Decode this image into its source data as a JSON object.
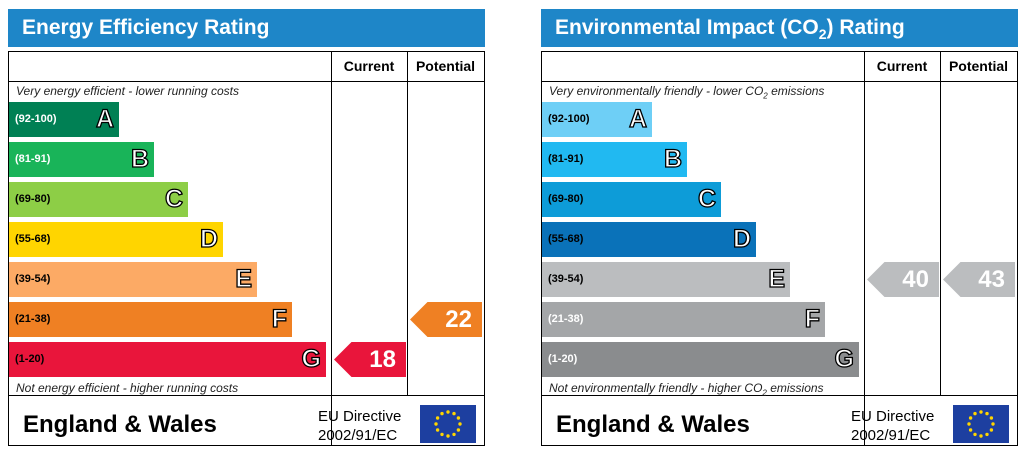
{
  "chart_data": [
    {
      "type": "table",
      "title": "Energy Efficiency Rating",
      "columns": [
        "Current",
        "Potential"
      ],
      "top_note": "Very energy efficient - lower running costs",
      "bottom_note": "Not energy efficient - higher running costs",
      "bands": [
        {
          "letter": "A",
          "range": "(92-100)",
          "color": "#008054",
          "text_color": "#ffffff"
        },
        {
          "letter": "B",
          "range": "(81-91)",
          "color": "#19b459",
          "text_color": "#ffffff"
        },
        {
          "letter": "C",
          "range": "(69-80)",
          "color": "#8dce46",
          "text_color": "#000000"
        },
        {
          "letter": "D",
          "range": "(55-68)",
          "color": "#ffd500",
          "text_color": "#000000"
        },
        {
          "letter": "E",
          "range": "(39-54)",
          "color": "#fcaa65",
          "text_color": "#000000"
        },
        {
          "letter": "F",
          "range": "(21-38)",
          "color": "#ef8023",
          "text_color": "#000000"
        },
        {
          "letter": "G",
          "range": "(1-20)",
          "color": "#e9153b",
          "text_color": "#000000"
        }
      ],
      "current": {
        "value": 18,
        "band": "G",
        "color": "#e9153b"
      },
      "potential": {
        "value": 22,
        "band": "F",
        "color": "#ef8023"
      },
      "footer": {
        "country": "England & Wales",
        "directive_line1": "EU Directive",
        "directive_line2": "2002/91/EC"
      }
    },
    {
      "type": "table",
      "title_pre": "Environmental Impact (CO",
      "title_sub": "2",
      "title_post": ") Rating",
      "columns": [
        "Current",
        "Potential"
      ],
      "top_note_pre": "Very environmentally friendly - lower CO",
      "top_note_sub": "2",
      "top_note_post": " emissions",
      "bottom_note_pre": "Not environmentally friendly - higher CO",
      "bottom_note_sub": "2",
      "bottom_note_post": " emissions",
      "bands": [
        {
          "letter": "A",
          "range": "(92-100)",
          "color": "#6ecff6",
          "text_color": "#000000"
        },
        {
          "letter": "B",
          "range": "(81-91)",
          "color": "#21b9f1",
          "text_color": "#000000"
        },
        {
          "letter": "C",
          "range": "(69-80)",
          "color": "#0d9cd8",
          "text_color": "#000000"
        },
        {
          "letter": "D",
          "range": "(55-68)",
          "color": "#0a72b9",
          "text_color": "#000000"
        },
        {
          "letter": "E",
          "range": "(39-54)",
          "color": "#bbbdbf",
          "text_color": "#000000"
        },
        {
          "letter": "F",
          "range": "(21-38)",
          "color": "#a4a6a8",
          "text_color": "#ffffff"
        },
        {
          "letter": "G",
          "range": "(1-20)",
          "color": "#8a8c8e",
          "text_color": "#ffffff"
        }
      ],
      "current": {
        "value": 40,
        "band": "E",
        "color": "#bbbdbf"
      },
      "potential": {
        "value": 43,
        "band": "E",
        "color": "#bbbdbf"
      },
      "footer": {
        "country": "England & Wales",
        "directive_line1": "EU Directive",
        "directive_line2": "2002/91/EC"
      }
    }
  ]
}
